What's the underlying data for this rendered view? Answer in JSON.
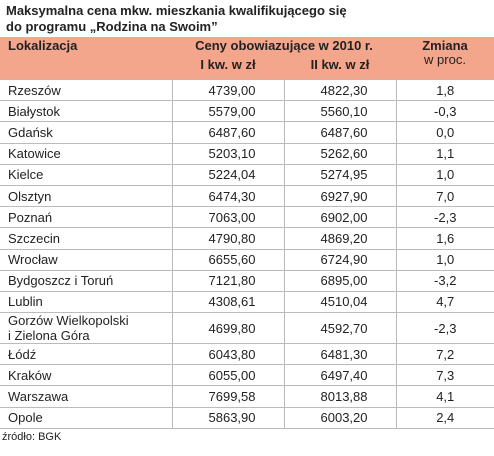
{
  "header": {
    "title_lines": [
      "Maksymalna cena mkw. mieszkania kwalifikującego się",
      "do programu „Rodzina na Swoim”"
    ]
  },
  "table": {
    "columns": {
      "location": "Lokalizacja",
      "prices": "Ceny obowiazujące w 2010 r.",
      "q1": "I kw. w zł",
      "q2": "II kw. w zł",
      "change": "Zmiana",
      "change_unit": "w proc."
    },
    "rows": [
      [
        "Rzeszów",
        "4739,00",
        "4822,30",
        "1,8"
      ],
      [
        "Białystok",
        "5579,00",
        "5560,10",
        "-0,3"
      ],
      [
        "Gdańsk",
        "6487,60",
        "6487,60",
        "0,0"
      ],
      [
        "Katowice",
        "5203,10",
        "5262,60",
        "1,1"
      ],
      [
        "Kielce",
        "5224,04",
        "5274,95",
        "1,0"
      ],
      [
        "Olsztyn",
        "6474,30",
        "6927,90",
        "7,0"
      ],
      [
        "Poznań",
        "7063,00",
        "6902,00",
        "-2,3"
      ],
      [
        "Szczecin",
        "4790,80",
        "4869,20",
        "1,6"
      ],
      [
        "Wrocław",
        "6655,60",
        "6724,90",
        "1,0"
      ],
      [
        "Bydgoszcz i Toruń",
        "7121,80",
        "6895,00",
        "-3,2"
      ],
      [
        "Lublin",
        "4308,61",
        "4510,04",
        "4,7"
      ],
      [
        "Gorzów Wielkopolski\ni Zielona Góra",
        "4699,80",
        "4592,70",
        "-2,3"
      ],
      [
        "Łódź",
        "6043,80",
        "6481,30",
        "7,2"
      ],
      [
        "Kraków",
        "6055,00",
        "6497,40",
        "7,3"
      ],
      [
        "Warszawa",
        "7699,58",
        "8013,88",
        "4,1"
      ],
      [
        "Opole",
        "5863,90",
        "6003,20",
        "2,4"
      ]
    ]
  },
  "footer": {
    "source": "źródło: BGK"
  }
}
